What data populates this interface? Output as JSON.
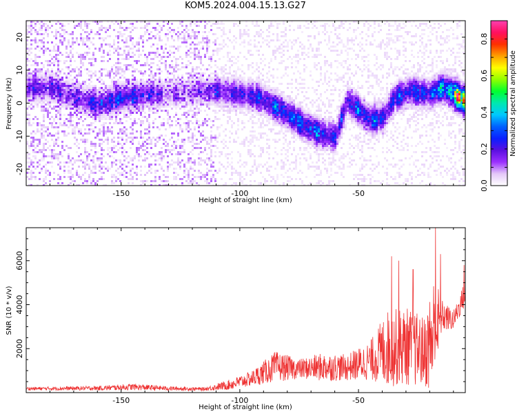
{
  "title": "KOM5.2024.004.15.13.G27",
  "chart_data": [
    {
      "type": "heatmap",
      "xlabel": "Height of straight line (km)",
      "ylabel": "Frequency (Hz)",
      "xlim": [
        -190,
        -5
      ],
      "ylim": [
        -25,
        25
      ],
      "xticks": [
        -150,
        -100,
        -50
      ],
      "yticks": [
        20,
        10,
        0,
        -10,
        -20
      ],
      "colorbar": {
        "label": "Normalized spectral amplitude",
        "range": [
          0,
          0.9
        ],
        "ticks": [
          0.0,
          0.2,
          0.4,
          0.6,
          0.8
        ],
        "colors": [
          "#ffffff",
          "#e4c8f8",
          "#9b30ff",
          "#5b10e0",
          "#0a20ff",
          "#0060ff",
          "#00c8ff",
          "#00e8b0",
          "#00ff30",
          "#90ff00",
          "#ffff00",
          "#ffa000",
          "#ff3000",
          "#ff1060",
          "#ff40b0"
        ]
      },
      "ridge": [
        {
          "x": -180,
          "y": 5,
          "a": 0.2
        },
        {
          "x": -170,
          "y": 2,
          "a": 0.18
        },
        {
          "x": -160,
          "y": 0,
          "a": 0.25
        },
        {
          "x": -150,
          "y": 2,
          "a": 0.28
        },
        {
          "x": -140,
          "y": 3,
          "a": 0.22
        },
        {
          "x": -130,
          "y": 3,
          "a": 0.12
        },
        {
          "x": -120,
          "y": 4,
          "a": 0.12
        },
        {
          "x": -110,
          "y": 4,
          "a": 0.22
        },
        {
          "x": -100,
          "y": 3,
          "a": 0.26
        },
        {
          "x": -92,
          "y": 2,
          "a": 0.3
        },
        {
          "x": -85,
          "y": -1,
          "a": 0.34
        },
        {
          "x": -78,
          "y": -4,
          "a": 0.36
        },
        {
          "x": -72,
          "y": -7,
          "a": 0.38
        },
        {
          "x": -66,
          "y": -9,
          "a": 0.34
        },
        {
          "x": -60,
          "y": -10,
          "a": 0.26
        },
        {
          "x": -55,
          "y": 1,
          "a": 0.3
        },
        {
          "x": -50,
          "y": -2,
          "a": 0.34
        },
        {
          "x": -45,
          "y": -5,
          "a": 0.36
        },
        {
          "x": -40,
          "y": -4,
          "a": 0.28
        },
        {
          "x": -35,
          "y": 2,
          "a": 0.3
        },
        {
          "x": -28,
          "y": 4,
          "a": 0.34
        },
        {
          "x": -20,
          "y": 3,
          "a": 0.32
        },
        {
          "x": -15,
          "y": 5,
          "a": 0.45
        },
        {
          "x": -10,
          "y": 3,
          "a": 0.7
        },
        {
          "x": -6,
          "y": 1,
          "a": 0.88
        }
      ]
    },
    {
      "type": "line",
      "xlabel": "Height of straight line (km)",
      "ylabel": "SNR (10 * v/v)",
      "xlim": [
        -190,
        -5
      ],
      "ylim": [
        0,
        7500
      ],
      "xticks": [
        -150,
        -100,
        -50
      ],
      "yticks": [
        2000,
        4000,
        6000
      ],
      "series": [
        {
          "color": "#ee3333",
          "envelope": [
            {
              "x": -190,
              "base": 150,
              "amp": 150
            },
            {
              "x": -160,
              "base": 160,
              "amp": 200
            },
            {
              "x": -145,
              "base": 200,
              "amp": 300
            },
            {
              "x": -130,
              "base": 150,
              "amp": 200
            },
            {
              "x": -115,
              "base": 130,
              "amp": 150
            },
            {
              "x": -105,
              "base": 250,
              "amp": 450
            },
            {
              "x": -95,
              "base": 500,
              "amp": 700
            },
            {
              "x": -85,
              "base": 900,
              "amp": 1400
            },
            {
              "x": -75,
              "base": 900,
              "amp": 900
            },
            {
              "x": -65,
              "base": 900,
              "amp": 1300
            },
            {
              "x": -55,
              "base": 900,
              "amp": 1200
            },
            {
              "x": -45,
              "base": 1100,
              "amp": 1800
            },
            {
              "x": -38,
              "base": 1300,
              "amp": 3500
            },
            {
              "x": -30,
              "base": 1400,
              "amp": 3600
            },
            {
              "x": -22,
              "base": 1200,
              "amp": 3200
            },
            {
              "x": -18,
              "base": 1500,
              "amp": 5800
            },
            {
              "x": -15,
              "base": 3200,
              "amp": 1500
            },
            {
              "x": -10,
              "base": 3100,
              "amp": 900
            },
            {
              "x": -5,
              "base": 4300,
              "amp": 1200
            }
          ],
          "peaks": [
            {
              "x": -36,
              "y": 6200
            },
            {
              "x": -33,
              "y": 6000
            },
            {
              "x": -27,
              "y": 5600
            },
            {
              "x": -17.5,
              "y": 7500
            },
            {
              "x": -15.5,
              "y": 6300
            },
            {
              "x": -5.5,
              "y": 5800
            }
          ]
        }
      ]
    }
  ]
}
